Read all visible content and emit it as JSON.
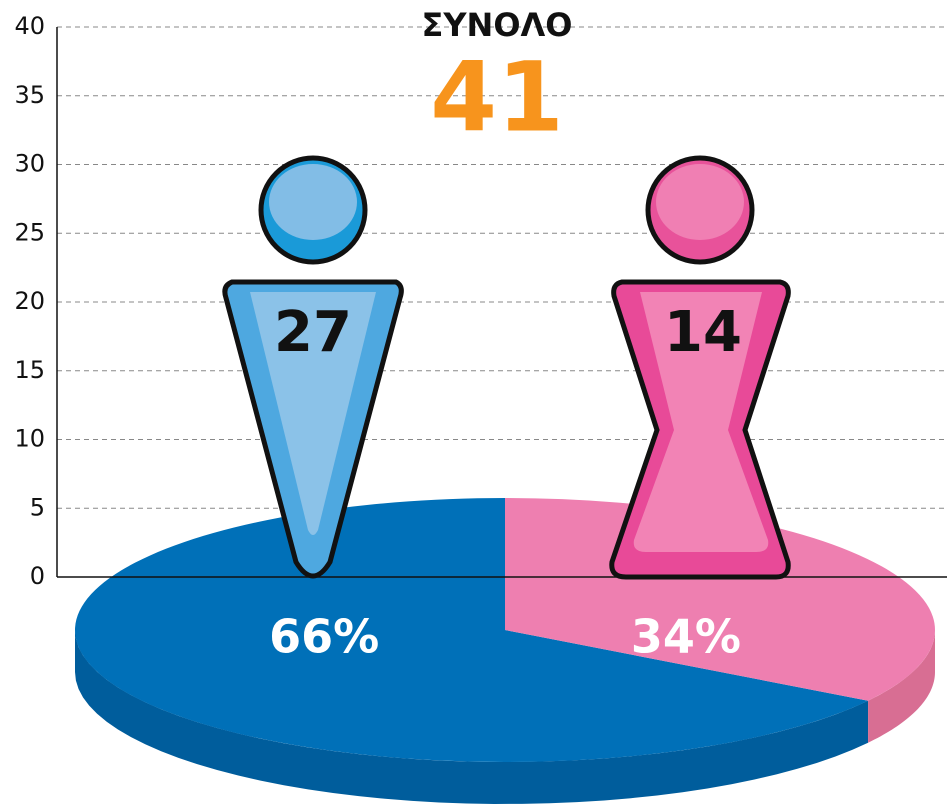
{
  "chart_data": {
    "type": "pie",
    "title": "ΣΥΝΟΛΟ",
    "total": 41,
    "counts": [
      27,
      14
    ],
    "values": [
      66,
      34
    ],
    "value_labels": [
      "66%",
      "34%"
    ],
    "colors": [
      "#0070b8",
      "#ee7fb0"
    ],
    "side_colors": [
      "#005d9c",
      "#d86e93"
    ],
    "ylim": [
      0,
      40
    ],
    "yticks": [
      0,
      5,
      10,
      15,
      20,
      25,
      30,
      35,
      40
    ],
    "grid": true
  }
}
